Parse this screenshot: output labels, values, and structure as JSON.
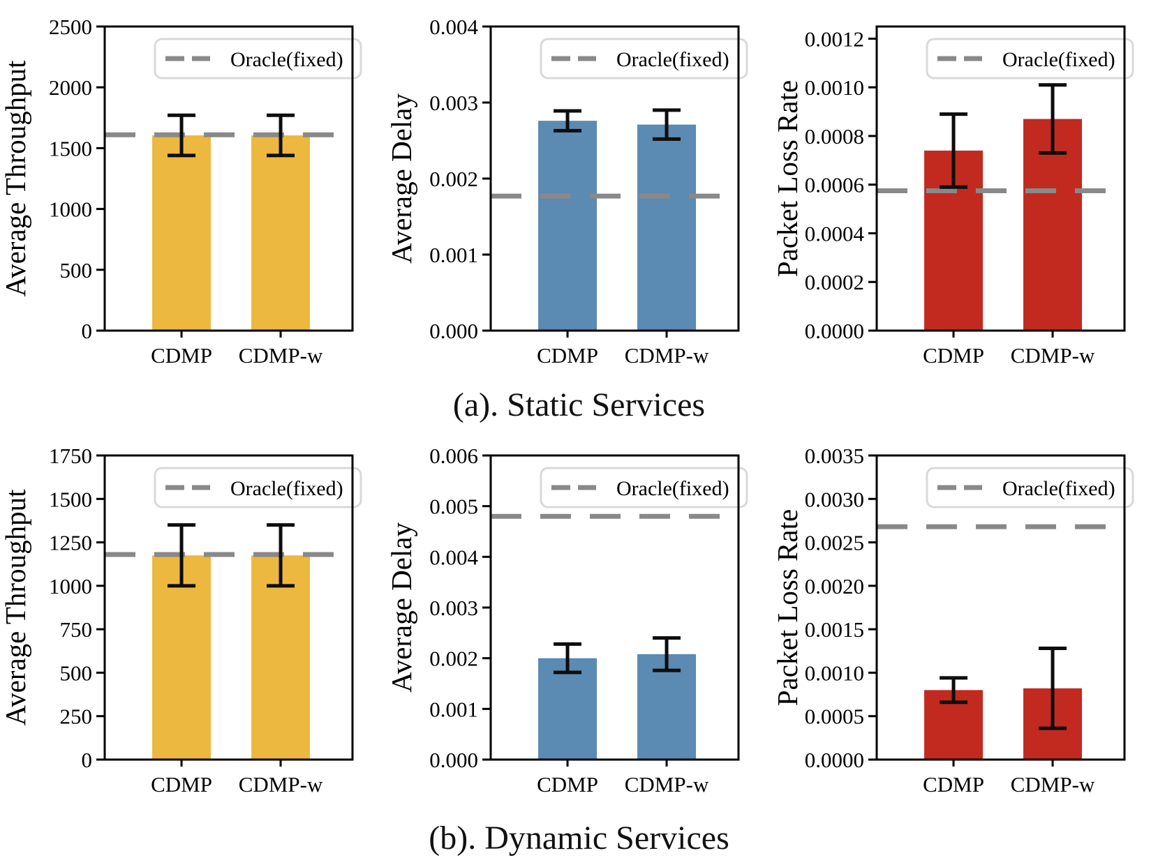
{
  "figure": {
    "captions": {
      "static": "(a). Static Services",
      "dynamic": "(b). Dynamic Services"
    },
    "legend_label": "Oracle(fixed)",
    "colors": {
      "throughput_bar": "#edb83f",
      "delay_bar": "#5b8ab2",
      "loss_bar": "#c22a20",
      "oracle_line": "#898989",
      "error_bar": "#0d0d0d",
      "legend_border": "#d9d9d9",
      "axis": "#000000"
    }
  },
  "chart_data": [
    {
      "id": "static-throughput",
      "type": "bar",
      "panel": "(a). Static Services",
      "ylabel": "Average Throughput",
      "categories": [
        "CDMP",
        "CDMP-w"
      ],
      "values": [
        1605,
        1605
      ],
      "errors": [
        165,
        165
      ],
      "oracle": 1610,
      "ylim": [
        0,
        2500
      ],
      "yticks": [
        0,
        500,
        1000,
        1500,
        2000,
        2500
      ],
      "ytick_labels": [
        "0",
        "500",
        "1000",
        "1500",
        "2000",
        "2500"
      ],
      "bar_color": "#edb83f",
      "legend": [
        "Oracle(fixed)"
      ],
      "legend_position": "upper center",
      "grid": false
    },
    {
      "id": "static-delay",
      "type": "bar",
      "panel": "(a). Static Services",
      "ylabel": "Average Delay",
      "categories": [
        "CDMP",
        "CDMP-w"
      ],
      "values": [
        0.00276,
        0.00271
      ],
      "errors": [
        0.00013,
        0.00019
      ],
      "oracle": 0.00177,
      "ylim": [
        0,
        0.004
      ],
      "yticks": [
        0,
        0.001,
        0.002,
        0.003,
        0.004
      ],
      "ytick_labels": [
        "0.000",
        "0.001",
        "0.002",
        "0.003",
        "0.004"
      ],
      "bar_color": "#5b8ab2",
      "legend": [
        "Oracle(fixed)"
      ],
      "legend_position": "upper center",
      "grid": false
    },
    {
      "id": "static-packet-loss",
      "type": "bar",
      "panel": "(a). Static Services",
      "ylabel": "Packet Loss Rate",
      "categories": [
        "CDMP",
        "CDMP-w"
      ],
      "values": [
        0.00074,
        0.00087
      ],
      "errors": [
        0.00015,
        0.00014
      ],
      "oracle": 0.000575,
      "ylim": [
        0,
        0.00125
      ],
      "yticks": [
        0,
        0.0002,
        0.0004,
        0.0006,
        0.0008,
        0.001,
        0.0012
      ],
      "ytick_labels": [
        "0.0000",
        "0.0002",
        "0.0004",
        "0.0006",
        "0.0008",
        "0.0010",
        "0.0012"
      ],
      "bar_color": "#c22a20",
      "legend": [
        "Oracle(fixed)"
      ],
      "legend_position": "upper center",
      "grid": false
    },
    {
      "id": "dynamic-throughput",
      "type": "bar",
      "panel": "(b). Dynamic Services",
      "ylabel": "Average Throughput",
      "categories": [
        "CDMP",
        "CDMP-w"
      ],
      "values": [
        1175,
        1175
      ],
      "errors": [
        175,
        175
      ],
      "oracle": 1180,
      "ylim": [
        0,
        1750
      ],
      "yticks": [
        0,
        250,
        500,
        750,
        1000,
        1250,
        1500,
        1750
      ],
      "ytick_labels": [
        "0",
        "250",
        "500",
        "750",
        "1000",
        "1250",
        "1500",
        "1750"
      ],
      "bar_color": "#edb83f",
      "legend": [
        "Oracle(fixed)"
      ],
      "legend_position": "upper center",
      "grid": false
    },
    {
      "id": "dynamic-delay",
      "type": "bar",
      "panel": "(b). Dynamic Services",
      "ylabel": "Average Delay",
      "categories": [
        "CDMP",
        "CDMP-w"
      ],
      "values": [
        0.002,
        0.00208
      ],
      "errors": [
        0.00028,
        0.00032
      ],
      "oracle": 0.0048,
      "ylim": [
        0,
        0.006
      ],
      "yticks": [
        0,
        0.001,
        0.002,
        0.003,
        0.004,
        0.005,
        0.006
      ],
      "ytick_labels": [
        "0.000",
        "0.001",
        "0.002",
        "0.003",
        "0.004",
        "0.005",
        "0.006"
      ],
      "bar_color": "#5b8ab2",
      "legend": [
        "Oracle(fixed)"
      ],
      "legend_position": "upper center",
      "grid": false
    },
    {
      "id": "dynamic-packet-loss",
      "type": "bar",
      "panel": "(b). Dynamic Services",
      "ylabel": "Packet Loss Rate",
      "categories": [
        "CDMP",
        "CDMP-w"
      ],
      "values": [
        0.0008,
        0.00082
      ],
      "errors": [
        0.00014,
        0.00046
      ],
      "oracle": 0.00268,
      "ylim": [
        0,
        0.0035
      ],
      "yticks": [
        0,
        0.0005,
        0.001,
        0.0015,
        0.002,
        0.0025,
        0.003,
        0.0035
      ],
      "ytick_labels": [
        "0.0000",
        "0.0005",
        "0.0010",
        "0.0015",
        "0.0020",
        "0.0025",
        "0.0030",
        "0.0035"
      ],
      "bar_color": "#c22a20",
      "legend": [
        "Oracle(fixed)"
      ],
      "legend_position": "upper center",
      "grid": false
    }
  ]
}
